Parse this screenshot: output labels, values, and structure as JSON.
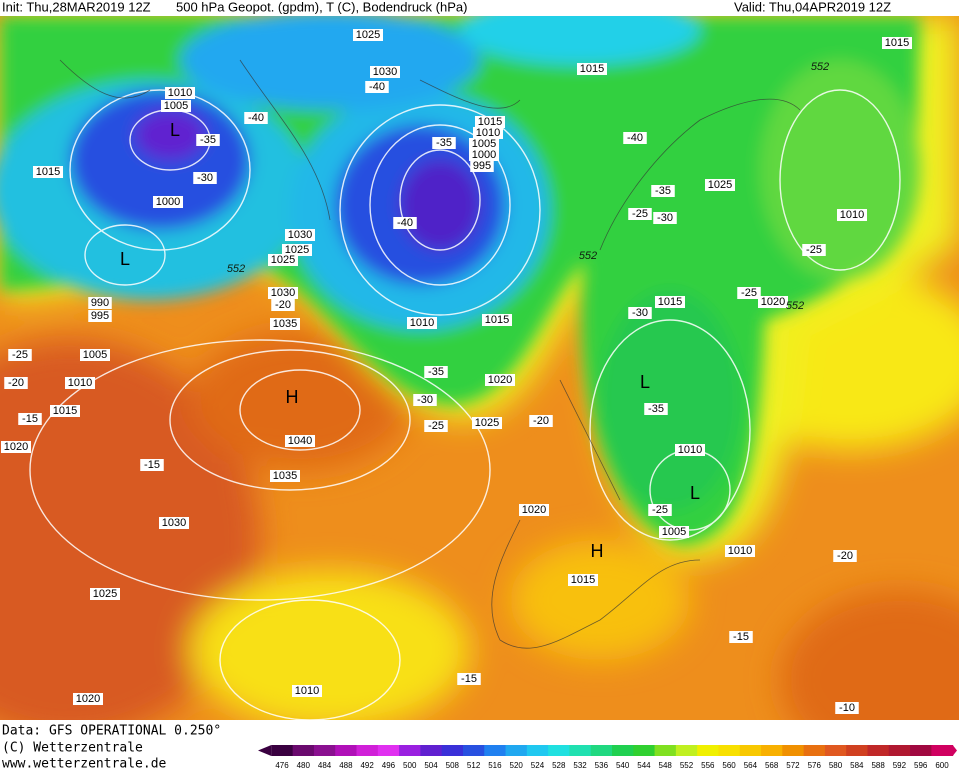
{
  "header": {
    "init": "Init: Thu,28MAR2019 12Z",
    "description": "500 hPa Geopot. (gpdm), T (C), Bodendruck (hPa)",
    "valid": "Valid: Thu,04APR2019 12Z"
  },
  "footer": {
    "data_source": "Data: GFS OPERATIONAL 0.250°",
    "copyright": "(C) Wetterzentrale",
    "website": "www.wetterzentrale.de"
  },
  "map": {
    "pressure_labels": [
      "1025",
      "1015",
      "1030",
      "1015",
      "1010",
      "1005",
      "1015",
      "1010",
      "1005",
      "1000",
      "995",
      "1015",
      "1000",
      "1025",
      "1010",
      "1030",
      "1025",
      "1025",
      "990",
      "995",
      "1030",
      "1035",
      "1010",
      "1015",
      "1015",
      "1020",
      "1005",
      "1010",
      "1015",
      "1020",
      "1020",
      "1025",
      "1040",
      "1035",
      "1030",
      "1020",
      "1010",
      "1005",
      "1010",
      "1015",
      "1025",
      "1010",
      "1020"
    ],
    "temperature_labels": [
      "-40",
      "-40",
      "-35",
      "-30",
      "-35",
      "-40",
      "-40",
      "-35",
      "-25",
      "-30",
      "-25",
      "-25",
      "-30",
      "-20",
      "-25",
      "-20",
      "-15",
      "-35",
      "-30",
      "-25",
      "-20",
      "-35",
      "-25",
      "-15",
      "-20",
      "-15",
      "-15",
      "-10"
    ],
    "height_labels": [
      "552",
      "552",
      "552",
      "552"
    ],
    "highs": [
      "H",
      "H"
    ],
    "lows": [
      "L",
      "L",
      "L",
      "L"
    ]
  },
  "colorbar": {
    "ticks": [
      476,
      480,
      484,
      488,
      492,
      496,
      500,
      504,
      508,
      512,
      516,
      520,
      524,
      528,
      532,
      536,
      540,
      544,
      548,
      552,
      556,
      560,
      564,
      568,
      572,
      576,
      580,
      584,
      588,
      592,
      596,
      600
    ],
    "colors": [
      "#3a0040",
      "#6a0a6e",
      "#8a1090",
      "#b010b8",
      "#d020d8",
      "#e030f0",
      "#9a20e0",
      "#6020d0",
      "#3a30d8",
      "#2850e0",
      "#2080f0",
      "#20a8f0",
      "#20c8f0",
      "#20e0e0",
      "#20e0b0",
      "#20d880",
      "#20d050",
      "#30d030",
      "#80e020",
      "#c0f020",
      "#f0f000",
      "#f8e000",
      "#f8c800",
      "#f8b000",
      "#f09000",
      "#e87010",
      "#e05820",
      "#d04020",
      "#c02828",
      "#b01830",
      "#a00840",
      "#d00060"
    ]
  }
}
